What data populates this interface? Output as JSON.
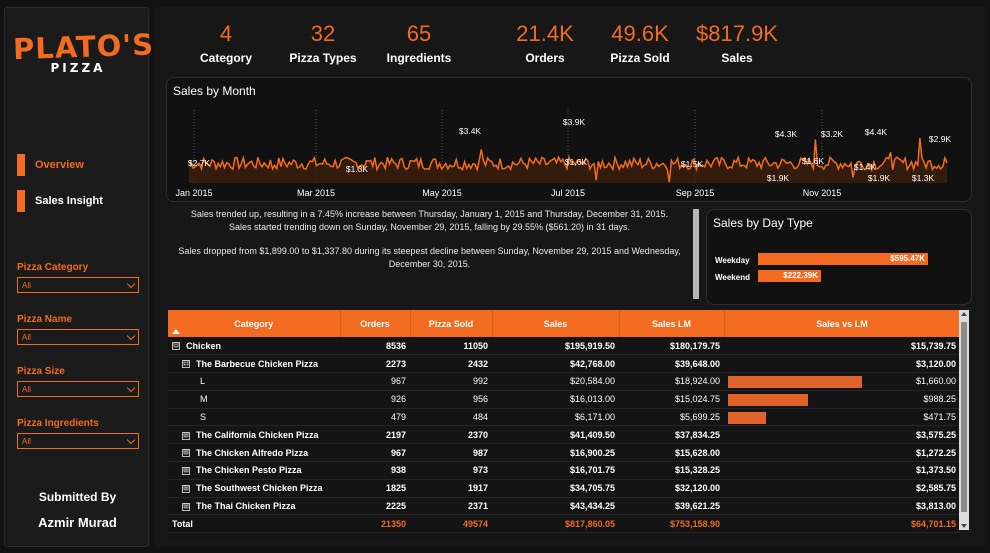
{
  "logo": {
    "main": "PLATO'S",
    "sub": "PIZZA"
  },
  "nav": [
    {
      "label": "Overview",
      "active": true
    },
    {
      "label": "Sales Insight",
      "active": false
    }
  ],
  "slicers": [
    {
      "title": "Pizza Category",
      "value": "All"
    },
    {
      "title": "Pizza Name",
      "value": "All"
    },
    {
      "title": "Pizza Size",
      "value": "All"
    },
    {
      "title": "Pizza Ingredients",
      "value": "All"
    }
  ],
  "submitted": {
    "label": "Submitted By",
    "name": "Azmir Murad"
  },
  "kpis": [
    {
      "value": "4",
      "label": "Category"
    },
    {
      "value": "32",
      "label": "Pizza Types"
    },
    {
      "value": "65",
      "label": "Ingredients"
    },
    {
      "value": "21.4K",
      "label": "Orders"
    },
    {
      "value": "49.6K",
      "label": "Pizza Sold"
    },
    {
      "value": "$817.9K",
      "label": "Sales"
    }
  ],
  "sales_by_month": {
    "title": "Sales by Month",
    "x_ticks": [
      "Jan 2015",
      "Mar 2015",
      "May 2015",
      "Jul 2015",
      "Sep 2015",
      "Nov 2015"
    ],
    "annotations": [
      "$2.7K",
      "$1.3K",
      "$3.4K",
      "$3.9K",
      "$1.6K",
      "$1.5K",
      "$4.3K",
      "$1.9K",
      "$1.6K",
      "$3.2K",
      "$1.4K",
      "$4.4K",
      "$1.9K",
      "$1.3K",
      "$2.9K"
    ]
  },
  "insights": [
    "Sales trended up, resulting in a 7.45% increase between Thursday, January 1, 2015 and Thursday, December 31, 2015.",
    "Sales started trending down on Sunday, November 29, 2015, falling by 29.55% ($561.20) in 31 days.",
    "Sales dropped from $1,899.00 to $1,337.80 during its steepest decline between Sunday, November 29, 2015 and Wednesday, December 30, 2015."
  ],
  "day_type": {
    "title": "Sales by Day Type",
    "rows": [
      {
        "label": "Weekday",
        "value": 595.47,
        "display": "$595.47K"
      },
      {
        "label": "Weekend",
        "value": 222.39,
        "display": "$222.39K"
      }
    ]
  },
  "table": {
    "headers": [
      "Category",
      "Orders",
      "Pizza Sold",
      "Sales",
      "Sales LM",
      "Sales vs LM"
    ],
    "rows": [
      {
        "level": 0,
        "expander": "⊟",
        "category": "Chicken",
        "orders": "8536",
        "sold": "11050",
        "sales": "$195,919.50",
        "lm": "$180,179.75",
        "vs": "$15,739.75"
      },
      {
        "level": 1,
        "expander": "⊟",
        "category": "The Barbecue Chicken Pizza",
        "orders": "2273",
        "sold": "2432",
        "sales": "$42,768.00",
        "lm": "$39,648.00",
        "vs": "$3,120.00"
      },
      {
        "level": 2,
        "expander": "",
        "category": "L",
        "orders": "967",
        "sold": "992",
        "sales": "$20,584.00",
        "lm": "$18,924.00",
        "vs": "$1,660.00",
        "bar": 1660.0
      },
      {
        "level": 2,
        "expander": "",
        "category": "M",
        "orders": "926",
        "sold": "956",
        "sales": "$16,013.00",
        "lm": "$15,024.75",
        "vs": "$988.25",
        "bar": 988.25
      },
      {
        "level": 2,
        "expander": "",
        "category": "S",
        "orders": "479",
        "sold": "484",
        "sales": "$6,171.00",
        "lm": "$5,699.25",
        "vs": "$471.75",
        "bar": 471.75
      },
      {
        "level": 1,
        "expander": "⊞",
        "category": "The California Chicken Pizza",
        "orders": "2197",
        "sold": "2370",
        "sales": "$41,409.50",
        "lm": "$37,834.25",
        "vs": "$3,575.25"
      },
      {
        "level": 1,
        "expander": "⊞",
        "category": "The Chicken Alfredo Pizza",
        "orders": "967",
        "sold": "987",
        "sales": "$16,900.25",
        "lm": "$15,628.00",
        "vs": "$1,272.25"
      },
      {
        "level": 1,
        "expander": "⊞",
        "category": "The Chicken Pesto Pizza",
        "orders": "938",
        "sold": "973",
        "sales": "$16,701.75",
        "lm": "$15,328.25",
        "vs": "$1,373.50"
      },
      {
        "level": 1,
        "expander": "⊞",
        "category": "The Southwest Chicken Pizza",
        "orders": "1825",
        "sold": "1917",
        "sales": "$34,705.75",
        "lm": "$32,120.00",
        "vs": "$2,585.75"
      },
      {
        "level": 1,
        "expander": "⊞",
        "category": "The Thai Chicken Pizza",
        "orders": "2225",
        "sold": "2371",
        "sales": "$43,434.25",
        "lm": "$39,621.25",
        "vs": "$3,813.00"
      }
    ],
    "total": {
      "category": "Total",
      "orders": "21350",
      "sold": "49574",
      "sales": "$817,860.05",
      "lm": "$753,158.90",
      "vs": "$64,701.15"
    }
  },
  "colors": {
    "accent": "#f26b21",
    "background": "#121212",
    "panel": "#171717"
  }
}
